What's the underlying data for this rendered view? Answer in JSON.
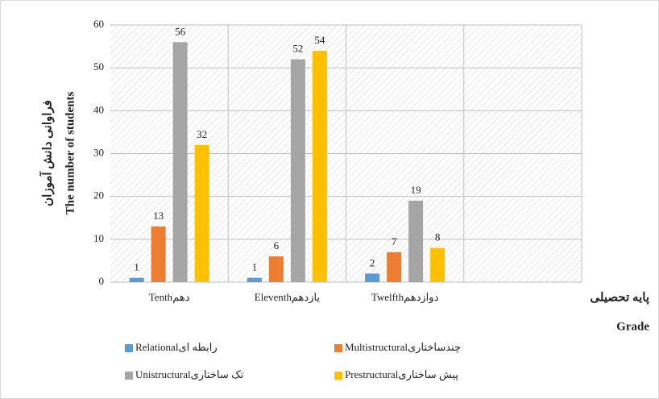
{
  "chart_data": {
    "type": "bar",
    "y_label": [
      "فراوانی دانش آموزان",
      "The number of students"
    ],
    "x_label": [
      "پایه تحصیلی",
      "Grade"
    ],
    "categories": [
      "Tenthدهم",
      "Eleventhیازدهم",
      "Twelfthدوازدهم",
      null
    ],
    "series": [
      {
        "name": "Relationalرابطه ای",
        "color": "#5b9bd5",
        "values": [
          1,
          1,
          2,
          null
        ]
      },
      {
        "name": "Multistructuralچندساختاری",
        "color": "#ed7d31",
        "values": [
          13,
          6,
          7,
          null
        ]
      },
      {
        "name": "Unistructuralتک ساختاری",
        "color": "#a5a5a5",
        "values": [
          56,
          52,
          19,
          null
        ]
      },
      {
        "name": "Prestructuralپیش ساختاری",
        "color": "#ffc000",
        "values": [
          32,
          54,
          8,
          null
        ]
      }
    ],
    "ylim": [
      0,
      60
    ],
    "yticks": [
      0,
      10,
      20,
      30,
      40,
      50,
      60
    ],
    "grid": true,
    "legend": "bottom"
  }
}
